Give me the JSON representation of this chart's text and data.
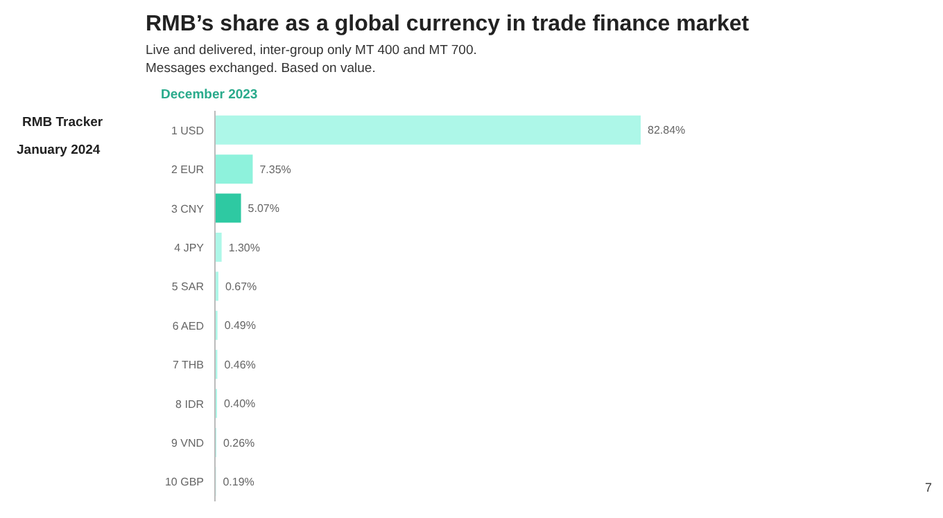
{
  "chart_data": {
    "type": "bar",
    "orientation": "horizontal",
    "title": "RMB’s share as a global currency in trade finance market",
    "subtitle": "Live and delivered, inter-group only MT 400 and MT 700.\nMessages exchanged. Based on value.",
    "legend_title": "December 2023",
    "categories": [
      "1  USD",
      "2  EUR",
      "3  CNY",
      "4  JPY",
      "5  SAR",
      "6  AED",
      "7  THB",
      "8  IDR",
      "9  VND",
      "10  GBP"
    ],
    "values": [
      82.84,
      7.35,
      5.07,
      1.3,
      0.67,
      0.49,
      0.46,
      0.4,
      0.26,
      0.19
    ],
    "value_labels": [
      "82.84%",
      "7.35%",
      "5.07%",
      "1.30%",
      "0.67%",
      "0.49%",
      "0.46%",
      "0.40%",
      "0.26%",
      "0.19%"
    ],
    "colors": [
      "#adf7e8",
      "#8ef2dc",
      "#2ec9a2",
      "#adf7e8",
      "#adf7e8",
      "#adf7e8",
      "#adf7e8",
      "#adf7e8",
      "#adf7e8",
      "#adf7e8"
    ],
    "annotations": [
      "RMB Tracker",
      "January 2024",
      "7"
    ]
  }
}
